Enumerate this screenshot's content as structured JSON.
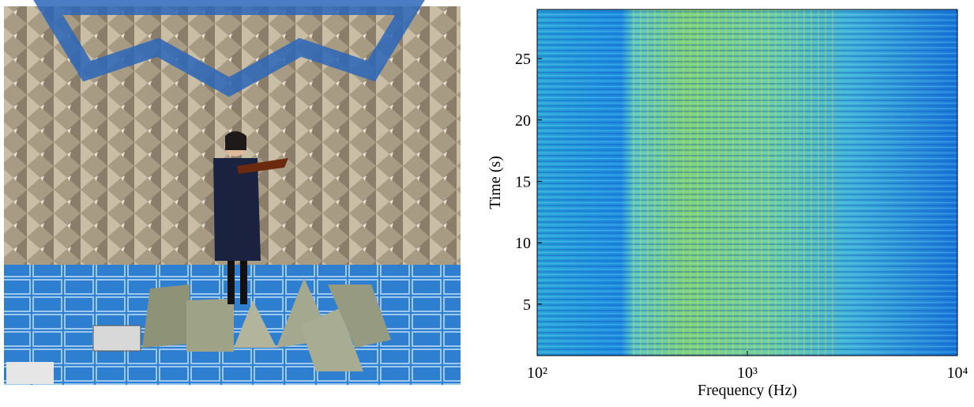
{
  "chart_data": {
    "type": "spectrogram",
    "xlabel": "Frequency (Hz)",
    "ylabel": "Time (s)",
    "xscale": "log",
    "xlim": [
      100,
      10000
    ],
    "xticks": [
      {
        "value": 100,
        "label": "10²"
      },
      {
        "value": 1000,
        "label": "10³"
      },
      {
        "value": 10000,
        "label": "10⁴"
      }
    ],
    "ylim": [
      0.8,
      29
    ],
    "yticks": [
      5,
      10,
      15,
      20,
      25
    ]
  }
}
